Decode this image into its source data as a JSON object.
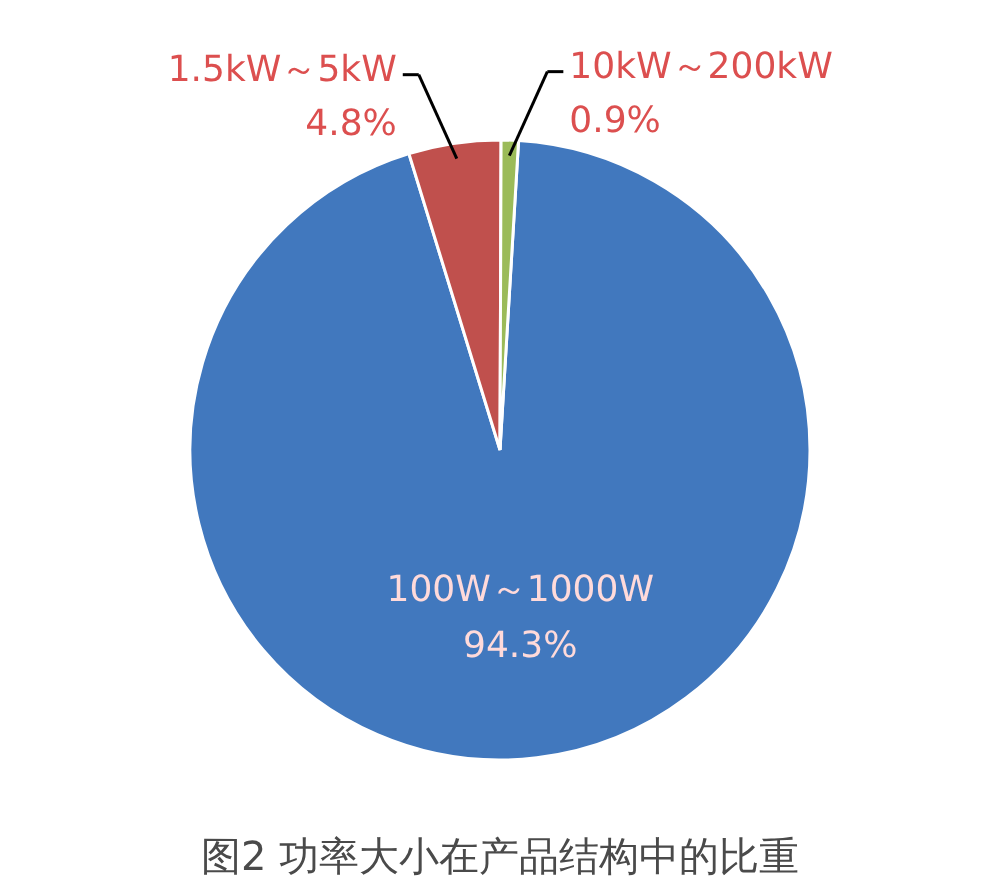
{
  "chart_data": {
    "type": "pie",
    "title": "图2 功率大小在产品结构中的比重",
    "categories": [
      "100W～1000W",
      "1.5kW～5kW",
      "10kW～200kW"
    ],
    "values": [
      94.3,
      4.8,
      0.9
    ],
    "colors": [
      "#4178be",
      "#c0504d",
      "#9bbb59"
    ],
    "value_labels": [
      "94.3%",
      "4.8%",
      "0.9%"
    ]
  }
}
